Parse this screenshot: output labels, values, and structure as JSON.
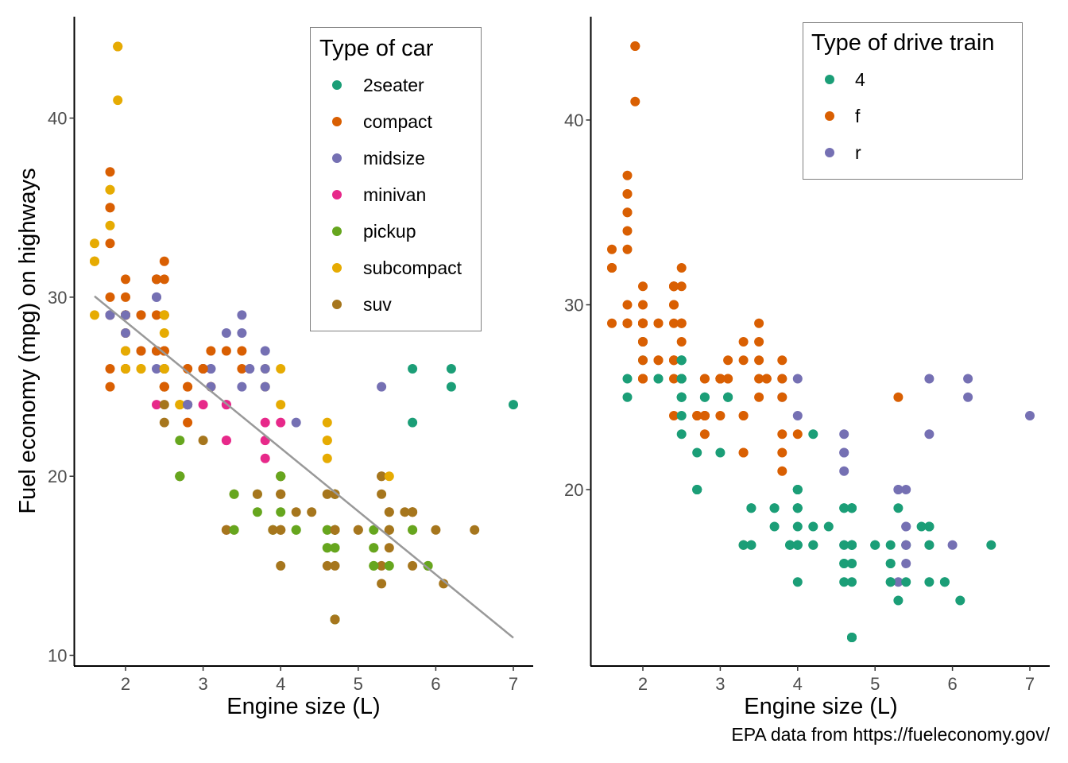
{
  "caption": "EPA data from https://fueleconomy.gov/",
  "chart_data": [
    {
      "type": "scatter",
      "title": "",
      "xlabel": "Engine size (L)",
      "ylabel": "Fuel economy (mpg) on highways",
      "xlim": [
        1.33,
        7.27
      ],
      "ylim": [
        9.4,
        45.6
      ],
      "xticks": [
        2,
        3,
        4,
        5,
        6,
        7
      ],
      "yticks": [
        10,
        20,
        30,
        40
      ],
      "grid": false,
      "color_by": "class",
      "legend": {
        "title": "Type of car",
        "placement": "top-right",
        "entries": [
          {
            "key": "2seater",
            "label": "2seater",
            "color": "#1B9E77"
          },
          {
            "key": "compact",
            "label": "compact",
            "color": "#D95F02"
          },
          {
            "key": "midsize",
            "label": "midsize",
            "color": "#7570B3"
          },
          {
            "key": "minivan",
            "label": "minivan",
            "color": "#E7298A"
          },
          {
            "key": "pickup",
            "label": "pickup",
            "color": "#66A61E"
          },
          {
            "key": "subcompact",
            "label": "subcompact",
            "color": "#E6AB02"
          },
          {
            "key": "suv",
            "label": "suv",
            "color": "#A6761D"
          }
        ]
      },
      "trend_line": {
        "method": "linear",
        "color": "#999999",
        "x": [
          1.6,
          7.0
        ],
        "y": [
          30.05,
          10.98
        ]
      }
    },
    {
      "type": "scatter",
      "title": "",
      "xlabel": "Engine size (L)",
      "ylabel": "",
      "xlim": [
        1.33,
        7.27
      ],
      "ylim": [
        10.4,
        45.6
      ],
      "xticks": [
        2,
        3,
        4,
        5,
        6,
        7
      ],
      "yticks": [
        20,
        30,
        40
      ],
      "grid": false,
      "color_by": "drv",
      "legend": {
        "title": "Type of drive train",
        "placement": "top-right",
        "entries": [
          {
            "key": "4",
            "label": "4",
            "color": "#1B9E77"
          },
          {
            "key": "f",
            "label": "f",
            "color": "#D95F02"
          },
          {
            "key": "r",
            "label": "r",
            "color": "#7570B3"
          }
        ]
      }
    }
  ],
  "points_fields": [
    "displ",
    "hwy",
    "class",
    "drv"
  ],
  "points": [
    [
      1.8,
      29,
      "compact",
      "f"
    ],
    [
      1.8,
      29,
      "compact",
      "f"
    ],
    [
      2.0,
      31,
      "compact",
      "f"
    ],
    [
      2.0,
      30,
      "compact",
      "f"
    ],
    [
      2.8,
      26,
      "compact",
      "f"
    ],
    [
      2.8,
      26,
      "compact",
      "f"
    ],
    [
      3.1,
      27,
      "compact",
      "f"
    ],
    [
      1.8,
      26,
      "compact",
      "4"
    ],
    [
      1.8,
      25,
      "compact",
      "4"
    ],
    [
      2.0,
      28,
      "compact",
      "4"
    ],
    [
      2.0,
      27,
      "compact",
      "4"
    ],
    [
      2.8,
      25,
      "compact",
      "4"
    ],
    [
      2.8,
      25,
      "compact",
      "4"
    ],
    [
      3.1,
      25,
      "compact",
      "4"
    ],
    [
      3.1,
      25,
      "compact",
      "4"
    ],
    [
      2.8,
      24,
      "midsize",
      "4"
    ],
    [
      3.1,
      25,
      "midsize",
      "4"
    ],
    [
      4.2,
      23,
      "midsize",
      "4"
    ],
    [
      5.3,
      20,
      "suv",
      "r"
    ],
    [
      5.3,
      15,
      "suv",
      "r"
    ],
    [
      5.3,
      20,
      "suv",
      "r"
    ],
    [
      5.7,
      17,
      "suv",
      "r"
    ],
    [
      6.0,
      17,
      "suv",
      "r"
    ],
    [
      5.7,
      26,
      "2seater",
      "r"
    ],
    [
      5.7,
      23,
      "2seater",
      "r"
    ],
    [
      6.2,
      26,
      "2seater",
      "r"
    ],
    [
      6.2,
      25,
      "2seater",
      "r"
    ],
    [
      7.0,
      24,
      "2seater",
      "r"
    ],
    [
      5.3,
      19,
      "suv",
      "4"
    ],
    [
      5.3,
      14,
      "suv",
      "4"
    ],
    [
      5.7,
      15,
      "suv",
      "4"
    ],
    [
      6.5,
      17,
      "suv",
      "4"
    ],
    [
      2.4,
      27,
      "midsize",
      "f"
    ],
    [
      2.4,
      30,
      "midsize",
      "f"
    ],
    [
      3.1,
      26,
      "midsize",
      "f"
    ],
    [
      3.5,
      29,
      "midsize",
      "f"
    ],
    [
      3.6,
      26,
      "midsize",
      "f"
    ],
    [
      2.4,
      24,
      "minivan",
      "f"
    ],
    [
      3.0,
      24,
      "minivan",
      "f"
    ],
    [
      3.3,
      22,
      "minivan",
      "f"
    ],
    [
      3.3,
      22,
      "minivan",
      "f"
    ],
    [
      3.3,
      24,
      "minivan",
      "f"
    ],
    [
      3.3,
      24,
      "minivan",
      "f"
    ],
    [
      3.3,
      17,
      "minivan",
      "f"
    ],
    [
      3.8,
      22,
      "minivan",
      "f"
    ],
    [
      3.8,
      21,
      "minivan",
      "f"
    ],
    [
      3.8,
      23,
      "minivan",
      "f"
    ],
    [
      4.0,
      23,
      "minivan",
      "f"
    ],
    [
      3.7,
      19,
      "pickup",
      "4"
    ],
    [
      3.7,
      18,
      "pickup",
      "4"
    ],
    [
      3.9,
      17,
      "pickup",
      "4"
    ],
    [
      3.9,
      17,
      "pickup",
      "4"
    ],
    [
      4.7,
      19,
      "pickup",
      "4"
    ],
    [
      4.7,
      19,
      "pickup",
      "4"
    ],
    [
      4.7,
      12,
      "pickup",
      "4"
    ],
    [
      5.2,
      17,
      "pickup",
      "4"
    ],
    [
      5.2,
      15,
      "pickup",
      "4"
    ],
    [
      3.9,
      17,
      "suv",
      "4"
    ],
    [
      4.7,
      17,
      "suv",
      "4"
    ],
    [
      4.7,
      12,
      "suv",
      "4"
    ],
    [
      4.7,
      17,
      "suv",
      "4"
    ],
    [
      5.2,
      16,
      "suv",
      "4"
    ],
    [
      5.7,
      18,
      "suv",
      "4"
    ],
    [
      5.9,
      15,
      "suv",
      "4"
    ],
    [
      4.7,
      16,
      "pickup",
      "4"
    ],
    [
      4.7,
      12,
      "pickup",
      "4"
    ],
    [
      4.7,
      17,
      "pickup",
      "4"
    ],
    [
      4.7,
      17,
      "pickup",
      "4"
    ],
    [
      4.7,
      16,
      "pickup",
      "4"
    ],
    [
      4.7,
      12,
      "pickup",
      "4"
    ],
    [
      5.2,
      15,
      "pickup",
      "4"
    ],
    [
      5.2,
      16,
      "pickup",
      "4"
    ],
    [
      5.7,
      17,
      "pickup",
      "4"
    ],
    [
      5.9,
      15,
      "pickup",
      "4"
    ],
    [
      4.6,
      17,
      "suv",
      "r"
    ],
    [
      5.4,
      17,
      "suv",
      "r"
    ],
    [
      5.4,
      18,
      "suv",
      "r"
    ],
    [
      4.0,
      17,
      "suv",
      "4"
    ],
    [
      4.0,
      19,
      "suv",
      "4"
    ],
    [
      4.0,
      17,
      "suv",
      "4"
    ],
    [
      4.0,
      19,
      "suv",
      "4"
    ],
    [
      4.6,
      19,
      "suv",
      "4"
    ],
    [
      5.0,
      17,
      "suv",
      "4"
    ],
    [
      4.2,
      17,
      "pickup",
      "4"
    ],
    [
      4.2,
      17,
      "pickup",
      "4"
    ],
    [
      4.6,
      16,
      "pickup",
      "4"
    ],
    [
      4.6,
      16,
      "pickup",
      "4"
    ],
    [
      4.6,
      17,
      "pickup",
      "4"
    ],
    [
      5.4,
      15,
      "pickup",
      "4"
    ],
    [
      5.4,
      17,
      "pickup",
      "4"
    ],
    [
      3.8,
      26,
      "subcompact",
      "r"
    ],
    [
      3.8,
      25,
      "subcompact",
      "r"
    ],
    [
      4.0,
      26,
      "subcompact",
      "r"
    ],
    [
      4.0,
      24,
      "subcompact",
      "r"
    ],
    [
      4.6,
      21,
      "subcompact",
      "r"
    ],
    [
      4.6,
      22,
      "subcompact",
      "r"
    ],
    [
      4.6,
      23,
      "subcompact",
      "r"
    ],
    [
      4.6,
      22,
      "subcompact",
      "r"
    ],
    [
      5.4,
      20,
      "subcompact",
      "r"
    ],
    [
      1.6,
      33,
      "subcompact",
      "f"
    ],
    [
      1.6,
      32,
      "subcompact",
      "f"
    ],
    [
      1.6,
      32,
      "subcompact",
      "f"
    ],
    [
      1.6,
      29,
      "subcompact",
      "f"
    ],
    [
      1.6,
      32,
      "subcompact",
      "f"
    ],
    [
      1.8,
      34,
      "subcompact",
      "f"
    ],
    [
      1.8,
      36,
      "subcompact",
      "f"
    ],
    [
      1.8,
      36,
      "subcompact",
      "f"
    ],
    [
      2.0,
      29,
      "subcompact",
      "f"
    ],
    [
      2.4,
      26,
      "midsize",
      "f"
    ],
    [
      2.4,
      27,
      "midsize",
      "f"
    ],
    [
      2.4,
      30,
      "midsize",
      "f"
    ],
    [
      2.4,
      31,
      "midsize",
      "f"
    ],
    [
      2.5,
      26,
      "midsize",
      "f"
    ],
    [
      2.5,
      26,
      "midsize",
      "f"
    ],
    [
      3.3,
      28,
      "midsize",
      "f"
    ],
    [
      2.0,
      26,
      "subcompact",
      "f"
    ],
    [
      2.0,
      29,
      "subcompact",
      "f"
    ],
    [
      2.0,
      28,
      "subcompact",
      "f"
    ],
    [
      2.0,
      27,
      "subcompact",
      "f"
    ],
    [
      2.7,
      24,
      "subcompact",
      "f"
    ],
    [
      2.7,
      24,
      "subcompact",
      "f"
    ],
    [
      2.7,
      24,
      "subcompact",
      "f"
    ],
    [
      3.0,
      22,
      "suv",
      "4"
    ],
    [
      3.7,
      19,
      "suv",
      "4"
    ],
    [
      4.0,
      20,
      "suv",
      "4"
    ],
    [
      4.7,
      17,
      "suv",
      "4"
    ],
    [
      4.7,
      12,
      "suv",
      "4"
    ],
    [
      4.7,
      19,
      "suv",
      "4"
    ],
    [
      4.7,
      19,
      "suv",
      "4"
    ],
    [
      5.7,
      18,
      "suv",
      "4"
    ],
    [
      6.1,
      14,
      "suv",
      "4"
    ],
    [
      4.0,
      15,
      "suv",
      "4"
    ],
    [
      4.2,
      18,
      "suv",
      "4"
    ],
    [
      4.4,
      18,
      "suv",
      "4"
    ],
    [
      4.6,
      15,
      "suv",
      "4"
    ],
    [
      5.4,
      17,
      "suv",
      "r"
    ],
    [
      5.4,
      16,
      "suv",
      "r"
    ],
    [
      5.4,
      18,
      "suv",
      "r"
    ],
    [
      4.0,
      17,
      "suv",
      "4"
    ],
    [
      4.0,
      19,
      "suv",
      "4"
    ],
    [
      4.6,
      19,
      "suv",
      "4"
    ],
    [
      5.0,
      17,
      "suv",
      "4"
    ],
    [
      2.4,
      29,
      "compact",
      "f"
    ],
    [
      2.4,
      27,
      "compact",
      "f"
    ],
    [
      2.5,
      31,
      "compact",
      "f"
    ],
    [
      2.5,
      32,
      "compact",
      "f"
    ],
    [
      3.5,
      27,
      "compact",
      "f"
    ],
    [
      3.5,
      26,
      "compact",
      "f"
    ],
    [
      3.0,
      26,
      "midsize",
      "f"
    ],
    [
      3.0,
      26,
      "midsize",
      "f"
    ],
    [
      3.5,
      25,
      "midsize",
      "f"
    ],
    [
      3.3,
      17,
      "suv",
      "4"
    ],
    [
      3.3,
      17,
      "suv",
      "4"
    ],
    [
      4.0,
      20,
      "suv",
      "4"
    ],
    [
      5.6,
      18,
      "suv",
      "4"
    ],
    [
      3.1,
      26,
      "midsize",
      "f"
    ],
    [
      3.8,
      26,
      "midsize",
      "f"
    ],
    [
      3.8,
      27,
      "midsize",
      "f"
    ],
    [
      3.8,
      25,
      "midsize",
      "f"
    ],
    [
      5.3,
      25,
      "midsize",
      "f"
    ],
    [
      2.5,
      25,
      "suv",
      "4"
    ],
    [
      2.5,
      24,
      "suv",
      "4"
    ],
    [
      2.5,
      27,
      "suv",
      "4"
    ],
    [
      2.5,
      25,
      "suv",
      "4"
    ],
    [
      2.5,
      26,
      "suv",
      "4"
    ],
    [
      2.5,
      23,
      "suv",
      "4"
    ],
    [
      2.2,
      26,
      "subcompact",
      "4"
    ],
    [
      2.2,
      26,
      "subcompact",
      "4"
    ],
    [
      2.5,
      26,
      "subcompact",
      "4"
    ],
    [
      2.5,
      26,
      "subcompact",
      "4"
    ],
    [
      2.5,
      25,
      "compact",
      "4"
    ],
    [
      2.5,
      27,
      "compact",
      "4"
    ],
    [
      2.5,
      25,
      "compact",
      "4"
    ],
    [
      2.5,
      27,
      "compact",
      "4"
    ],
    [
      2.7,
      20,
      "suv",
      "4"
    ],
    [
      2.7,
      20,
      "suv",
      "4"
    ],
    [
      3.4,
      19,
      "suv",
      "4"
    ],
    [
      3.4,
      17,
      "suv",
      "4"
    ],
    [
      4.0,
      20,
      "suv",
      "4"
    ],
    [
      4.7,
      17,
      "suv",
      "4"
    ],
    [
      2.2,
      29,
      "midsize",
      "f"
    ],
    [
      2.2,
      27,
      "midsize",
      "f"
    ],
    [
      2.4,
      31,
      "midsize",
      "f"
    ],
    [
      2.4,
      31,
      "midsize",
      "f"
    ],
    [
      3.0,
      26,
      "midsize",
      "f"
    ],
    [
      3.0,
      26,
      "midsize",
      "f"
    ],
    [
      3.5,
      28,
      "midsize",
      "f"
    ],
    [
      2.2,
      27,
      "compact",
      "f"
    ],
    [
      2.2,
      29,
      "compact",
      "f"
    ],
    [
      2.4,
      31,
      "compact",
      "f"
    ],
    [
      2.4,
      31,
      "compact",
      "f"
    ],
    [
      3.0,
      26,
      "compact",
      "f"
    ],
    [
      3.0,
      26,
      "compact",
      "f"
    ],
    [
      3.3,
      27,
      "compact",
      "f"
    ],
    [
      1.8,
      30,
      "compact",
      "f"
    ],
    [
      1.8,
      33,
      "compact",
      "f"
    ],
    [
      1.8,
      35,
      "compact",
      "f"
    ],
    [
      1.8,
      37,
      "compact",
      "f"
    ],
    [
      1.8,
      35,
      "compact",
      "f"
    ],
    [
      4.7,
      15,
      "suv",
      "4"
    ],
    [
      5.7,
      18,
      "suv",
      "4"
    ],
    [
      2.7,
      20,
      "pickup",
      "4"
    ],
    [
      2.7,
      20,
      "pickup",
      "4"
    ],
    [
      2.7,
      22,
      "pickup",
      "4"
    ],
    [
      3.4,
      17,
      "pickup",
      "4"
    ],
    [
      3.4,
      19,
      "pickup",
      "4"
    ],
    [
      4.0,
      18,
      "pickup",
      "4"
    ],
    [
      4.0,
      20,
      "pickup",
      "4"
    ],
    [
      2.0,
      29,
      "compact",
      "f"
    ],
    [
      2.0,
      26,
      "compact",
      "f"
    ],
    [
      2.0,
      29,
      "compact",
      "f"
    ],
    [
      2.0,
      29,
      "compact",
      "f"
    ],
    [
      2.8,
      24,
      "compact",
      "f"
    ],
    [
      1.9,
      44,
      "compact",
      "f"
    ],
    [
      2.0,
      29,
      "compact",
      "f"
    ],
    [
      2.0,
      26,
      "compact",
      "f"
    ],
    [
      2.0,
      29,
      "compact",
      "f"
    ],
    [
      2.0,
      29,
      "compact",
      "f"
    ],
    [
      2.5,
      29,
      "compact",
      "f"
    ],
    [
      2.5,
      29,
      "compact",
      "f"
    ],
    [
      2.8,
      23,
      "compact",
      "f"
    ],
    [
      2.8,
      24,
      "compact",
      "f"
    ],
    [
      1.9,
      44,
      "subcompact",
      "f"
    ],
    [
      1.9,
      41,
      "subcompact",
      "f"
    ],
    [
      2.0,
      29,
      "subcompact",
      "f"
    ],
    [
      2.0,
      26,
      "subcompact",
      "f"
    ],
    [
      2.5,
      28,
      "subcompact",
      "f"
    ],
    [
      2.5,
      29,
      "subcompact",
      "f"
    ],
    [
      1.8,
      29,
      "midsize",
      "f"
    ],
    [
      1.8,
      29,
      "midsize",
      "f"
    ],
    [
      2.0,
      28,
      "midsize",
      "f"
    ],
    [
      2.0,
      29,
      "midsize",
      "f"
    ],
    [
      2.8,
      24,
      "midsize",
      "f"
    ],
    [
      2.8,
      24,
      "midsize",
      "f"
    ],
    [
      3.6,
      26,
      "midsize",
      "f"
    ]
  ]
}
